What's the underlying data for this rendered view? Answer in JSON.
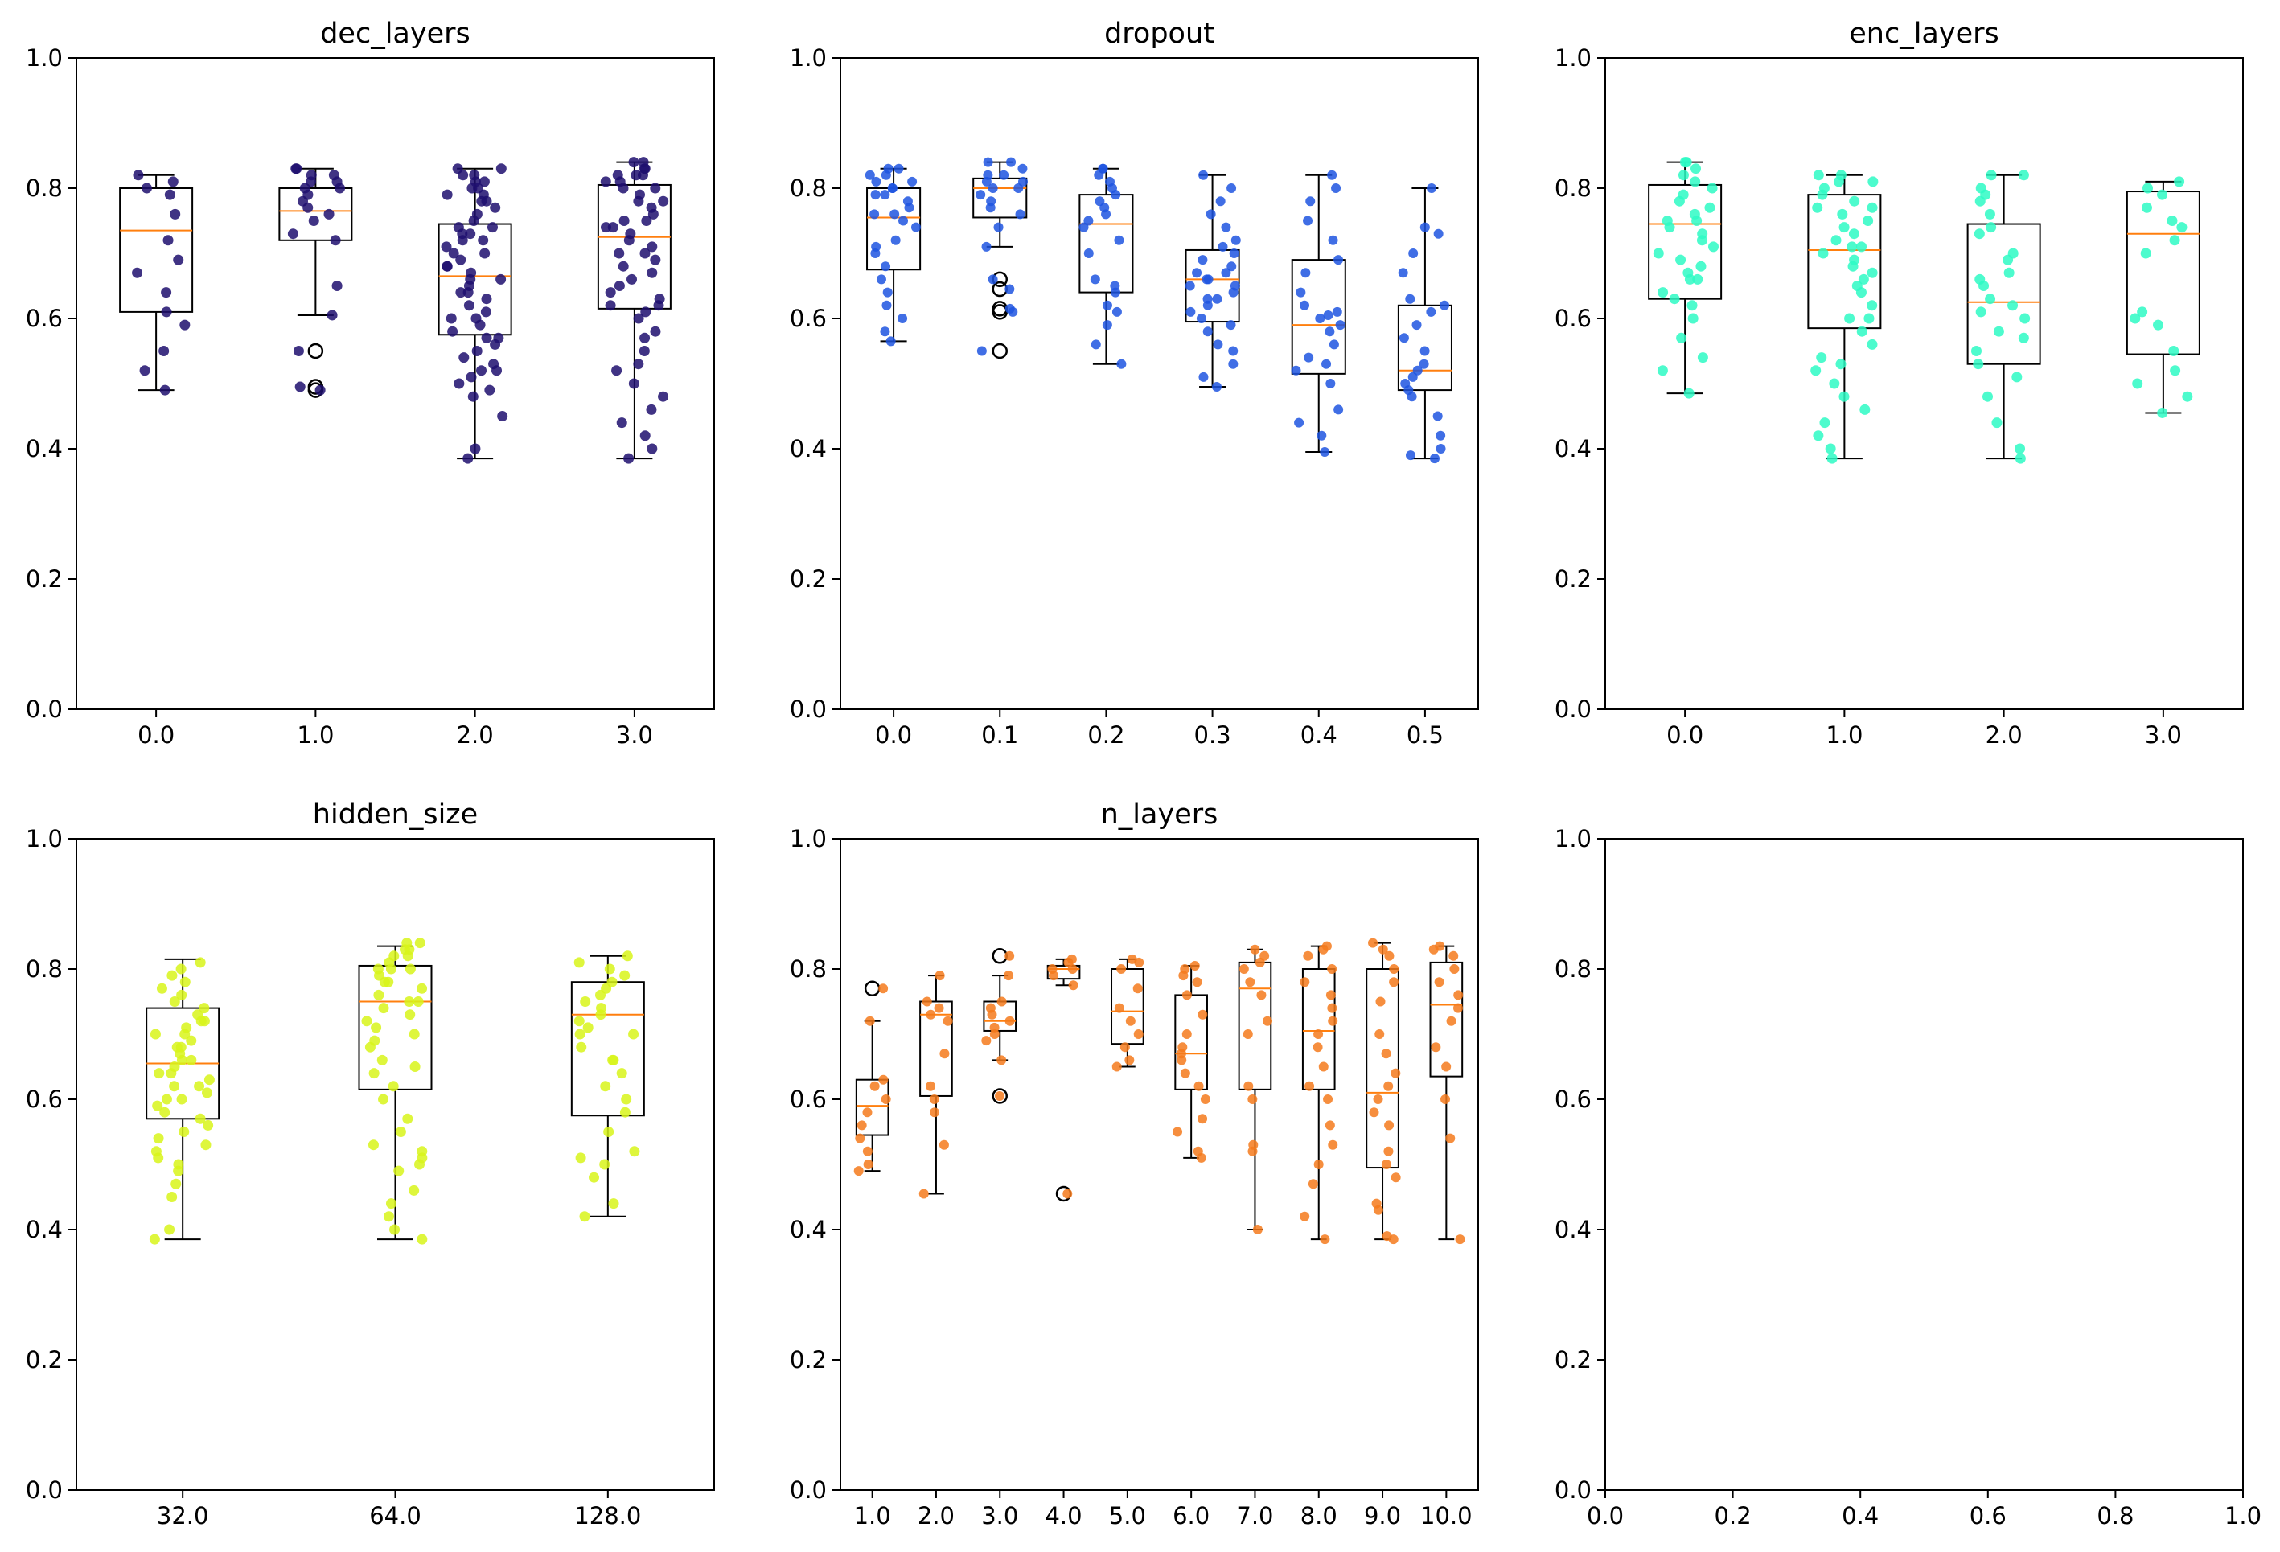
{
  "chart_data": [
    {
      "type": "box",
      "title": "dec_layers",
      "categories": [
        "0.0",
        "1.0",
        "2.0",
        "3.0"
      ],
      "ylim": [
        0,
        1
      ],
      "yticks": [
        "0.0",
        "0.2",
        "0.4",
        "0.6",
        "0.8",
        "1.0"
      ],
      "color": "#1f0f6e",
      "boxes": [
        {
          "whislo": 0.49,
          "q1": 0.61,
          "med": 0.735,
          "q3": 0.8,
          "whishi": 0.82,
          "fliers": [],
          "points": [
            0.49,
            0.52,
            0.55,
            0.59,
            0.61,
            0.64,
            0.67,
            0.69,
            0.72,
            0.76,
            0.79,
            0.8,
            0.81,
            0.82
          ]
        },
        {
          "whislo": 0.605,
          "q1": 0.72,
          "med": 0.765,
          "q3": 0.8,
          "whishi": 0.83,
          "fliers": [
            0.49,
            0.495,
            0.55
          ],
          "points": [
            0.49,
            0.495,
            0.55,
            0.605,
            0.65,
            0.72,
            0.73,
            0.75,
            0.76,
            0.77,
            0.78,
            0.79,
            0.8,
            0.81,
            0.81,
            0.82,
            0.82,
            0.83,
            0.83,
            0.8
          ]
        },
        {
          "whislo": 0.385,
          "q1": 0.575,
          "med": 0.665,
          "q3": 0.745,
          "whishi": 0.83,
          "fliers": [],
          "points": [
            0.385,
            0.4,
            0.45,
            0.48,
            0.49,
            0.5,
            0.51,
            0.52,
            0.53,
            0.54,
            0.55,
            0.56,
            0.57,
            0.58,
            0.59,
            0.6,
            0.61,
            0.62,
            0.63,
            0.64,
            0.64,
            0.65,
            0.66,
            0.66,
            0.67,
            0.68,
            0.69,
            0.7,
            0.7,
            0.71,
            0.72,
            0.73,
            0.73,
            0.74,
            0.74,
            0.75,
            0.76,
            0.77,
            0.78,
            0.78,
            0.79,
            0.8,
            0.8,
            0.81,
            0.81,
            0.82,
            0.82,
            0.83,
            0.83,
            0.6,
            0.57,
            0.52,
            0.68,
            0.72,
            0.79
          ]
        },
        {
          "whislo": 0.385,
          "q1": 0.615,
          "med": 0.725,
          "q3": 0.805,
          "whishi": 0.84,
          "fliers": [],
          "points": [
            0.385,
            0.4,
            0.42,
            0.44,
            0.46,
            0.48,
            0.5,
            0.52,
            0.53,
            0.55,
            0.58,
            0.6,
            0.61,
            0.62,
            0.63,
            0.64,
            0.65,
            0.66,
            0.67,
            0.68,
            0.69,
            0.7,
            0.71,
            0.72,
            0.73,
            0.74,
            0.75,
            0.75,
            0.76,
            0.77,
            0.78,
            0.79,
            0.8,
            0.8,
            0.81,
            0.81,
            0.82,
            0.82,
            0.83,
            0.83,
            0.84,
            0.84,
            0.62,
            0.7,
            0.74,
            0.78,
            0.82,
            0.57
          ]
        }
      ]
    },
    {
      "type": "box",
      "title": "dropout",
      "categories": [
        "0.0",
        "0.1",
        "0.2",
        "0.3",
        "0.4",
        "0.5"
      ],
      "ylim": [
        0,
        1
      ],
      "yticks": [
        "0.0",
        "0.2",
        "0.4",
        "0.6",
        "0.8",
        "1.0"
      ],
      "color": "#1f55e0",
      "boxes": [
        {
          "whislo": 0.565,
          "q1": 0.675,
          "med": 0.755,
          "q3": 0.8,
          "whishi": 0.83,
          "fliers": [],
          "points": [
            0.565,
            0.58,
            0.6,
            0.62,
            0.64,
            0.66,
            0.68,
            0.7,
            0.72,
            0.74,
            0.75,
            0.76,
            0.77,
            0.78,
            0.79,
            0.8,
            0.8,
            0.81,
            0.81,
            0.82,
            0.82,
            0.83,
            0.83,
            0.76,
            0.71,
            0.79
          ]
        },
        {
          "whislo": 0.71,
          "q1": 0.755,
          "med": 0.8,
          "q3": 0.815,
          "whishi": 0.84,
          "fliers": [
            0.55,
            0.61,
            0.615,
            0.645,
            0.66
          ],
          "points": [
            0.55,
            0.61,
            0.615,
            0.645,
            0.66,
            0.71,
            0.74,
            0.76,
            0.78,
            0.79,
            0.8,
            0.8,
            0.81,
            0.81,
            0.82,
            0.82,
            0.83,
            0.84,
            0.84,
            0.77
          ]
        },
        {
          "whislo": 0.53,
          "q1": 0.64,
          "med": 0.745,
          "q3": 0.79,
          "whishi": 0.83,
          "fliers": [],
          "points": [
            0.53,
            0.56,
            0.59,
            0.61,
            0.62,
            0.64,
            0.65,
            0.66,
            0.7,
            0.72,
            0.74,
            0.75,
            0.76,
            0.77,
            0.78,
            0.79,
            0.8,
            0.81,
            0.82,
            0.83,
            0.83
          ]
        },
        {
          "whislo": 0.495,
          "q1": 0.595,
          "med": 0.66,
          "q3": 0.705,
          "whishi": 0.82,
          "fliers": [],
          "points": [
            0.495,
            0.51,
            0.53,
            0.55,
            0.56,
            0.58,
            0.59,
            0.6,
            0.61,
            0.62,
            0.63,
            0.64,
            0.65,
            0.65,
            0.66,
            0.66,
            0.67,
            0.68,
            0.69,
            0.7,
            0.71,
            0.72,
            0.74,
            0.76,
            0.78,
            0.8,
            0.82,
            0.67,
            0.63
          ]
        },
        {
          "whislo": 0.395,
          "q1": 0.515,
          "med": 0.59,
          "q3": 0.69,
          "whishi": 0.82,
          "fliers": [],
          "points": [
            0.395,
            0.42,
            0.44,
            0.46,
            0.5,
            0.52,
            0.53,
            0.54,
            0.56,
            0.58,
            0.59,
            0.6,
            0.61,
            0.62,
            0.64,
            0.67,
            0.69,
            0.72,
            0.75,
            0.78,
            0.8,
            0.82,
            0.605
          ]
        },
        {
          "whislo": 0.385,
          "q1": 0.49,
          "med": 0.52,
          "q3": 0.62,
          "whishi": 0.8,
          "fliers": [],
          "points": [
            0.385,
            0.39,
            0.4,
            0.42,
            0.45,
            0.48,
            0.49,
            0.5,
            0.51,
            0.52,
            0.53,
            0.55,
            0.57,
            0.59,
            0.61,
            0.62,
            0.63,
            0.67,
            0.7,
            0.73,
            0.74,
            0.8
          ]
        }
      ]
    },
    {
      "type": "box",
      "title": "enc_layers",
      "categories": [
        "0.0",
        "1.0",
        "2.0",
        "3.0"
      ],
      "ylim": [
        0,
        1
      ],
      "yticks": [
        "0.0",
        "0.2",
        "0.4",
        "0.6",
        "0.8",
        "1.0"
      ],
      "color": "#2efac4",
      "boxes": [
        {
          "whislo": 0.485,
          "q1": 0.63,
          "med": 0.745,
          "q3": 0.805,
          "whishi": 0.84,
          "fliers": [],
          "points": [
            0.485,
            0.52,
            0.54,
            0.57,
            0.6,
            0.62,
            0.63,
            0.64,
            0.66,
            0.67,
            0.68,
            0.69,
            0.7,
            0.71,
            0.72,
            0.73,
            0.74,
            0.75,
            0.76,
            0.77,
            0.78,
            0.79,
            0.8,
            0.81,
            0.82,
            0.83,
            0.84,
            0.84,
            0.75,
            0.66
          ]
        },
        {
          "whislo": 0.385,
          "q1": 0.585,
          "med": 0.705,
          "q3": 0.79,
          "whishi": 0.82,
          "fliers": [],
          "points": [
            0.385,
            0.4,
            0.42,
            0.44,
            0.46,
            0.48,
            0.5,
            0.52,
            0.54,
            0.56,
            0.58,
            0.6,
            0.62,
            0.64,
            0.65,
            0.66,
            0.67,
            0.68,
            0.69,
            0.7,
            0.71,
            0.72,
            0.73,
            0.74,
            0.75,
            0.76,
            0.77,
            0.78,
            0.79,
            0.8,
            0.81,
            0.81,
            0.82,
            0.82,
            0.6,
            0.53,
            0.71,
            0.77
          ]
        },
        {
          "whislo": 0.385,
          "q1": 0.53,
          "med": 0.625,
          "q3": 0.745,
          "whishi": 0.82,
          "fliers": [],
          "points": [
            0.385,
            0.4,
            0.44,
            0.48,
            0.51,
            0.53,
            0.55,
            0.57,
            0.58,
            0.6,
            0.62,
            0.63,
            0.65,
            0.66,
            0.67,
            0.69,
            0.7,
            0.73,
            0.74,
            0.76,
            0.78,
            0.79,
            0.8,
            0.82,
            0.82,
            0.61
          ]
        },
        {
          "whislo": 0.455,
          "q1": 0.545,
          "med": 0.73,
          "q3": 0.795,
          "whishi": 0.81,
          "fliers": [],
          "points": [
            0.455,
            0.48,
            0.5,
            0.52,
            0.55,
            0.59,
            0.6,
            0.61,
            0.7,
            0.72,
            0.74,
            0.75,
            0.77,
            0.79,
            0.8,
            0.81
          ]
        }
      ]
    },
    {
      "type": "box",
      "title": "hidden_size",
      "categories": [
        "32.0",
        "64.0",
        "128.0"
      ],
      "ylim": [
        0,
        1
      ],
      "yticks": [
        "0.0",
        "0.2",
        "0.4",
        "0.6",
        "0.8",
        "1.0"
      ],
      "color": "#d8f51a",
      "boxes": [
        {
          "whislo": 0.385,
          "q1": 0.57,
          "med": 0.655,
          "q3": 0.74,
          "whishi": 0.815,
          "fliers": [],
          "points": [
            0.385,
            0.4,
            0.45,
            0.47,
            0.49,
            0.5,
            0.51,
            0.52,
            0.53,
            0.54,
            0.55,
            0.56,
            0.57,
            0.58,
            0.59,
            0.6,
            0.61,
            0.62,
            0.62,
            0.63,
            0.64,
            0.64,
            0.65,
            0.66,
            0.66,
            0.67,
            0.68,
            0.69,
            0.7,
            0.7,
            0.71,
            0.72,
            0.73,
            0.74,
            0.75,
            0.76,
            0.77,
            0.78,
            0.79,
            0.8,
            0.81,
            0.6,
            0.68,
            0.72
          ]
        },
        {
          "whislo": 0.385,
          "q1": 0.615,
          "med": 0.75,
          "q3": 0.805,
          "whishi": 0.835,
          "fliers": [],
          "points": [
            0.385,
            0.4,
            0.42,
            0.44,
            0.46,
            0.49,
            0.5,
            0.51,
            0.52,
            0.53,
            0.55,
            0.57,
            0.6,
            0.62,
            0.64,
            0.65,
            0.66,
            0.68,
            0.69,
            0.7,
            0.71,
            0.72,
            0.73,
            0.74,
            0.75,
            0.76,
            0.77,
            0.78,
            0.79,
            0.8,
            0.8,
            0.81,
            0.82,
            0.82,
            0.83,
            0.83,
            0.84,
            0.84,
            0.8,
            0.78,
            0.75
          ]
        },
        {
          "whislo": 0.42,
          "q1": 0.575,
          "med": 0.73,
          "q3": 0.78,
          "whishi": 0.82,
          "fliers": [],
          "points": [
            0.42,
            0.44,
            0.48,
            0.5,
            0.51,
            0.52,
            0.55,
            0.58,
            0.6,
            0.62,
            0.64,
            0.66,
            0.68,
            0.7,
            0.71,
            0.72,
            0.73,
            0.74,
            0.75,
            0.76,
            0.77,
            0.78,
            0.79,
            0.8,
            0.81,
            0.82,
            0.7,
            0.66
          ]
        }
      ]
    },
    {
      "type": "box",
      "title": "n_layers",
      "categories": [
        "1.0",
        "2.0",
        "3.0",
        "4.0",
        "5.0",
        "6.0",
        "7.0",
        "8.0",
        "9.0",
        "10.0"
      ],
      "ylim": [
        0,
        1
      ],
      "yticks": [
        "0.0",
        "0.2",
        "0.4",
        "0.6",
        "0.8",
        "1.0"
      ],
      "color": "#f57a1c",
      "boxes": [
        {
          "whislo": 0.49,
          "q1": 0.545,
          "med": 0.59,
          "q3": 0.63,
          "whishi": 0.72,
          "fliers": [
            0.77
          ],
          "points": [
            0.49,
            0.5,
            0.52,
            0.54,
            0.56,
            0.58,
            0.6,
            0.62,
            0.63,
            0.72,
            0.77
          ]
        },
        {
          "whislo": 0.455,
          "q1": 0.605,
          "med": 0.73,
          "q3": 0.75,
          "whishi": 0.79,
          "fliers": [],
          "points": [
            0.455,
            0.53,
            0.58,
            0.6,
            0.62,
            0.67,
            0.72,
            0.73,
            0.74,
            0.75,
            0.79
          ]
        },
        {
          "whislo": 0.66,
          "q1": 0.705,
          "med": 0.72,
          "q3": 0.75,
          "whishi": 0.79,
          "fliers": [
            0.605,
            0.82
          ],
          "points": [
            0.605,
            0.66,
            0.69,
            0.7,
            0.71,
            0.72,
            0.73,
            0.74,
            0.75,
            0.79,
            0.82
          ]
        },
        {
          "whislo": 0.775,
          "q1": 0.785,
          "med": 0.8,
          "q3": 0.805,
          "whishi": 0.815,
          "fliers": [
            0.455
          ],
          "points": [
            0.455,
            0.775,
            0.79,
            0.8,
            0.8,
            0.81,
            0.815
          ]
        },
        {
          "whislo": 0.65,
          "q1": 0.685,
          "med": 0.735,
          "q3": 0.8,
          "whishi": 0.815,
          "fliers": [],
          "points": [
            0.65,
            0.66,
            0.68,
            0.7,
            0.72,
            0.74,
            0.77,
            0.8,
            0.81,
            0.815
          ]
        },
        {
          "whislo": 0.51,
          "q1": 0.615,
          "med": 0.67,
          "q3": 0.76,
          "whishi": 0.805,
          "fliers": [],
          "points": [
            0.51,
            0.52,
            0.55,
            0.57,
            0.6,
            0.62,
            0.64,
            0.66,
            0.67,
            0.68,
            0.7,
            0.73,
            0.76,
            0.78,
            0.79,
            0.8,
            0.805
          ]
        },
        {
          "whislo": 0.4,
          "q1": 0.615,
          "med": 0.77,
          "q3": 0.81,
          "whishi": 0.83,
          "fliers": [],
          "points": [
            0.4,
            0.52,
            0.53,
            0.6,
            0.62,
            0.7,
            0.72,
            0.76,
            0.78,
            0.8,
            0.81,
            0.82,
            0.83
          ]
        },
        {
          "whislo": 0.385,
          "q1": 0.615,
          "med": 0.705,
          "q3": 0.8,
          "whishi": 0.835,
          "fliers": [],
          "points": [
            0.385,
            0.42,
            0.47,
            0.5,
            0.53,
            0.56,
            0.6,
            0.62,
            0.65,
            0.68,
            0.7,
            0.72,
            0.74,
            0.76,
            0.78,
            0.8,
            0.82,
            0.83,
            0.835
          ]
        },
        {
          "whislo": 0.385,
          "q1": 0.495,
          "med": 0.61,
          "q3": 0.8,
          "whishi": 0.84,
          "fliers": [],
          "points": [
            0.385,
            0.39,
            0.43,
            0.44,
            0.48,
            0.5,
            0.52,
            0.56,
            0.58,
            0.6,
            0.62,
            0.64,
            0.67,
            0.7,
            0.75,
            0.78,
            0.8,
            0.82,
            0.83,
            0.84
          ]
        },
        {
          "whislo": 0.385,
          "q1": 0.635,
          "med": 0.745,
          "q3": 0.81,
          "whishi": 0.835,
          "fliers": [],
          "points": [
            0.385,
            0.54,
            0.6,
            0.65,
            0.68,
            0.72,
            0.74,
            0.76,
            0.78,
            0.8,
            0.82,
            0.83,
            0.835
          ]
        }
      ]
    },
    {
      "type": "empty",
      "title": "",
      "xticks": [
        "0.0",
        "0.2",
        "0.4",
        "0.6",
        "0.8",
        "1.0"
      ],
      "yticks": [
        "0.0",
        "0.2",
        "0.4",
        "0.6",
        "0.8",
        "1.0"
      ],
      "xlim": [
        0,
        1
      ],
      "ylim": [
        0,
        1
      ]
    }
  ]
}
